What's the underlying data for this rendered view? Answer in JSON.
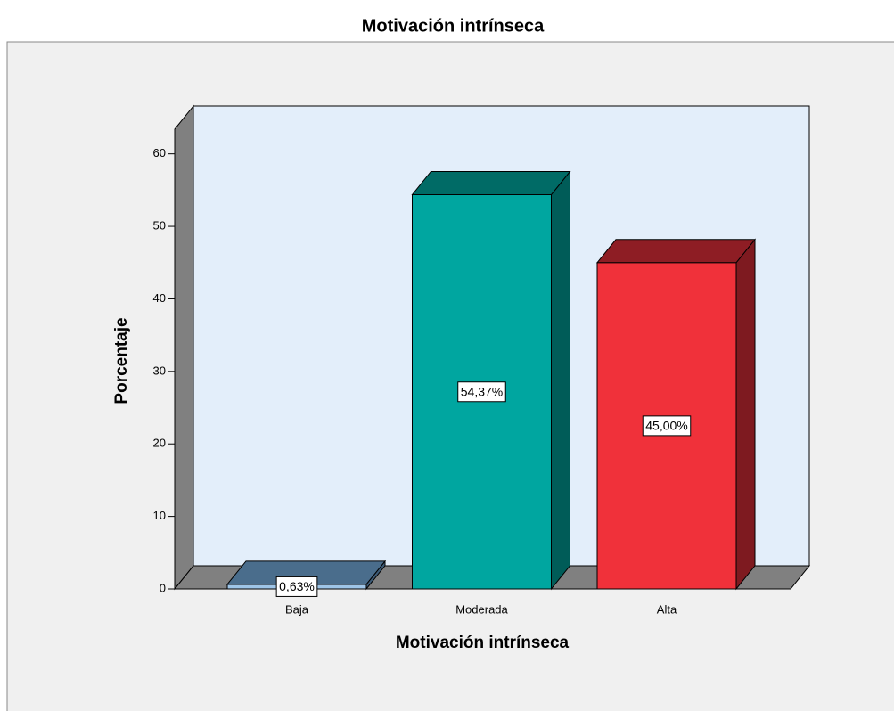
{
  "chart_data": {
    "type": "bar3d",
    "title": "Motivación intrínseca",
    "x_label": "Motivación intrínseca",
    "y_label": "Porcentaje",
    "categories": [
      "Baja",
      "Moderada",
      "Alta"
    ],
    "values": [
      0.63,
      54.37,
      45.0
    ],
    "value_labels": [
      "0,63%",
      "54,37%",
      "45,00%"
    ],
    "colors": [
      {
        "front": "#9ec5e8",
        "top": "#4a6d8c",
        "side": "#3d5a75"
      },
      {
        "front": "#00a6a0",
        "top": "#006b66",
        "side": "#005c58"
      },
      {
        "front": "#f0313a",
        "top": "#8e1d24",
        "side": "#7e1a20"
      }
    ],
    "ylim": [
      0,
      63.4
    ],
    "yticks": [
      0,
      10,
      20,
      30,
      40,
      50,
      60
    ]
  }
}
